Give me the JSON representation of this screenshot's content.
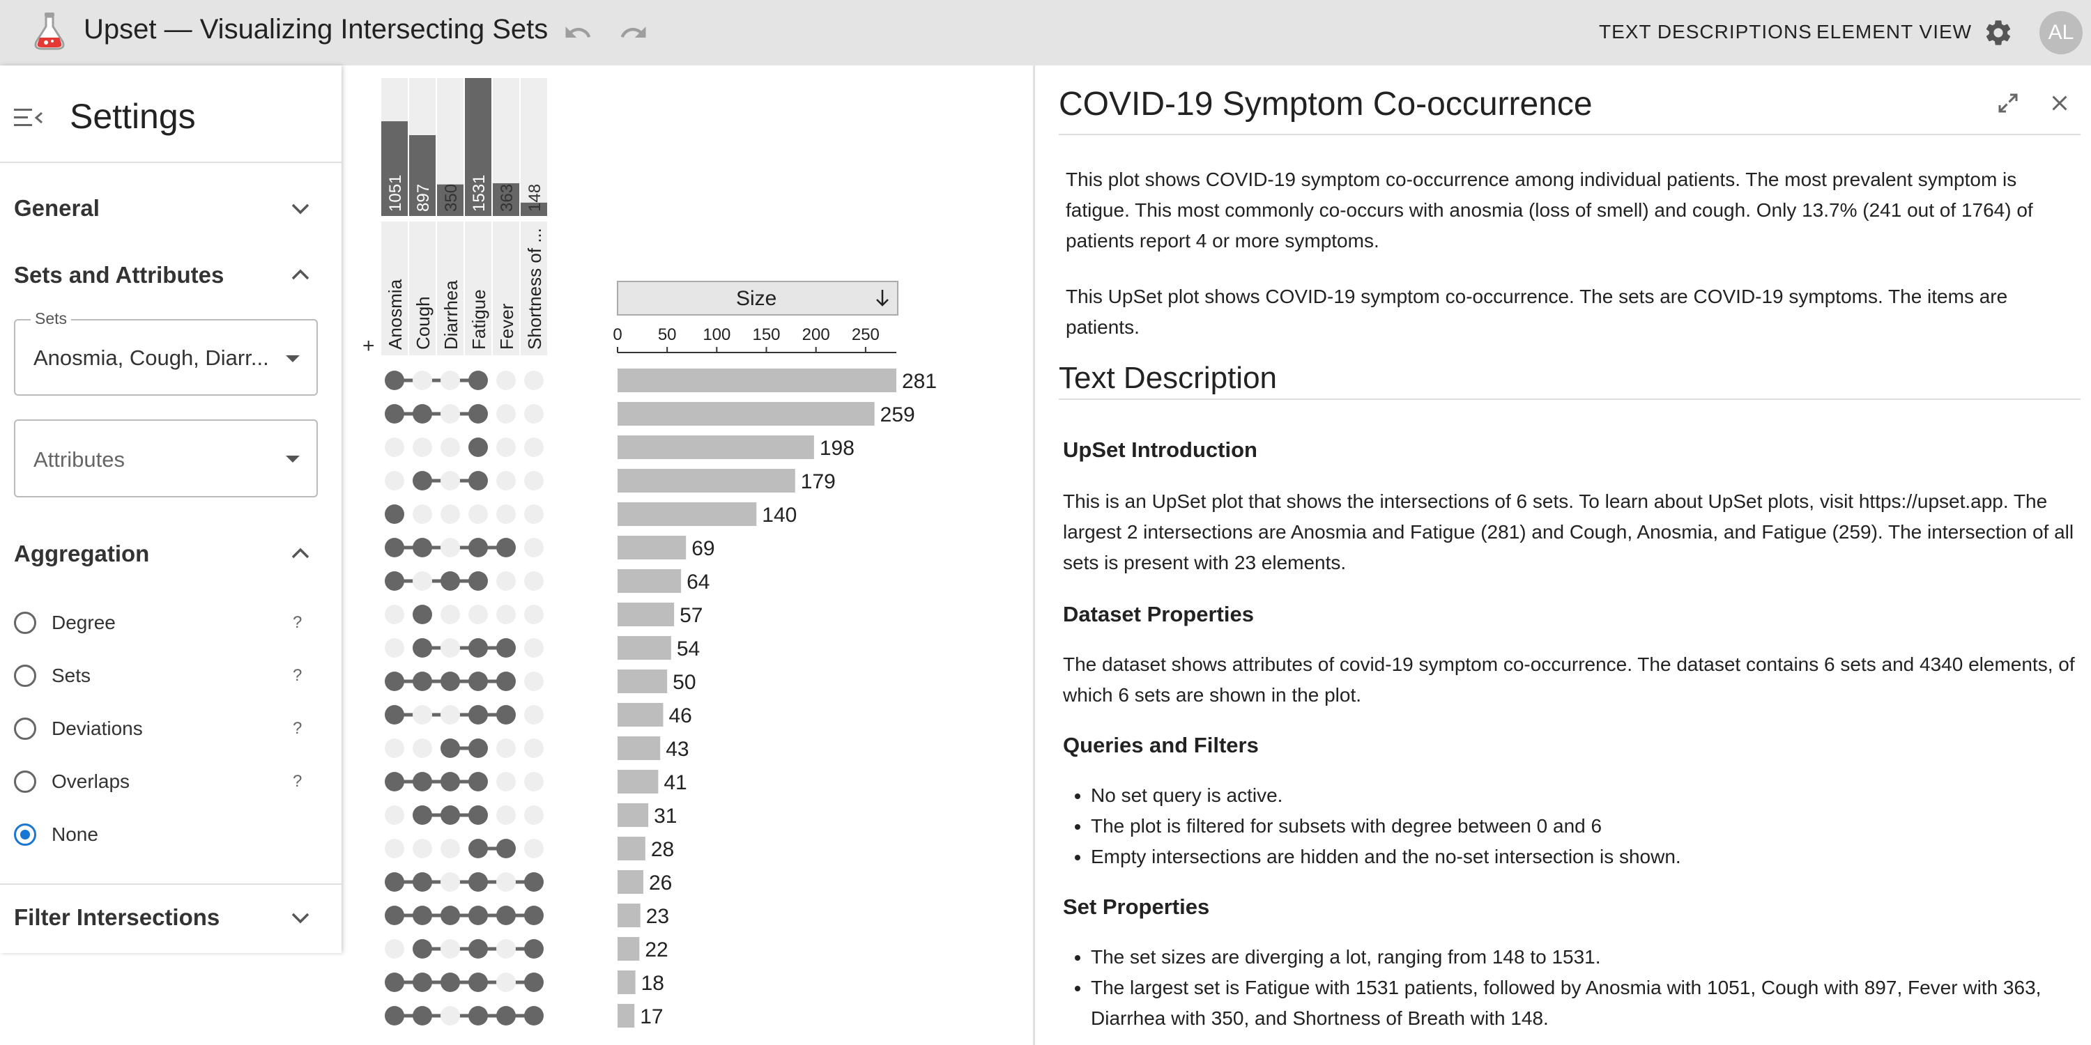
{
  "header": {
    "title": "Upset — Visualizing Intersecting Sets",
    "nav_text_descriptions": "TEXT DESCRIPTIONS",
    "nav_element_view": "ELEMENT VIEW",
    "avatar_initials": "AL",
    "logo_icon": "flask-icon",
    "undo_icon": "undo-icon",
    "redo_icon": "redo-icon",
    "settings_icon": "gear-icon"
  },
  "sidebar": {
    "title": "Settings",
    "sections": {
      "general": "General",
      "sets_attributes": "Sets and Attributes",
      "aggregation": "Aggregation",
      "filter": "Filter Intersections"
    },
    "sets_legend": "Sets",
    "sets_value": "Anosmia, Cough, Diarr...",
    "attributes_placeholder": "Attributes",
    "aggregation_options": [
      {
        "label": "Degree",
        "help": "?",
        "checked": false
      },
      {
        "label": "Sets",
        "help": "?",
        "checked": false
      },
      {
        "label": "Deviations",
        "help": "?",
        "checked": false
      },
      {
        "label": "Overlaps",
        "help": "?",
        "checked": false
      },
      {
        "label": "None",
        "help": "",
        "checked": true
      }
    ]
  },
  "panel": {
    "title": "COVID-19 Symptom Co-occurrence",
    "intro1": "This plot shows COVID-19 symptom co-occurrence among individual patients. The most prevalent symptom is fatigue. This most commonly co-occurs with anosmia (loss of smell) and cough. Only 13.7% (241 out of 1764) of patients report 4 or more symptoms.",
    "intro2": "This UpSet plot shows COVID-19 symptom co-occurrence. The sets are COVID-19 symptoms. The items are patients.",
    "text_description_heading": "Text Description",
    "upset_intro_heading": "UpSet Introduction",
    "upset_intro_text": "This is an UpSet plot that shows the intersections of 6 sets. To learn about UpSet plots, visit https://upset.app. The largest 2 intersections are Anosmia and Fatigue (281) and Cough, Anosmia, and Fatigue (259). The intersection of all sets is present with 23 elements.",
    "dataset_heading": "Dataset Properties",
    "dataset_text": "The dataset shows attributes of covid-19 symptom co-occurrence. The dataset contains 6 sets and 4340 elements, of which 6 sets are shown in the plot.",
    "queries_heading": "Queries and Filters",
    "queries_items": [
      "No set query is active.",
      "The plot is filtered for subsets with degree between 0 and 6",
      "Empty intersections are hidden and the no-set intersection is shown."
    ],
    "setprops_heading": "Set Properties",
    "setprops_items": [
      "The set sizes are diverging a lot, ranging from 148 to 1531.",
      "The largest set is Fatigue with 1531 patients, followed by Anosmia with 1051, Cough with 897, Fever with 363, Diarrhea with 350, and Shortness of Breath with 148."
    ]
  },
  "chart_data": {
    "type": "bar",
    "title": "UpSet plot",
    "sets": [
      {
        "name": "Anosmia",
        "size": 1051
      },
      {
        "name": "Cough",
        "size": 897
      },
      {
        "name": "Diarrhea",
        "size": 350
      },
      {
        "name": "Fatigue",
        "size": 1531
      },
      {
        "name": "Fever",
        "size": 363
      },
      {
        "name": "Shortness of ...",
        "size": 148
      }
    ],
    "set_size_max": 1531,
    "size_axis_label": "Size",
    "size_axis_sort_icon": "arrow-down-icon",
    "size_axis_ticks": [
      0,
      50,
      100,
      150,
      200,
      250
    ],
    "size_axis_max": 281,
    "add_icon_label": "+",
    "intersections": [
      {
        "members": [
          0,
          3
        ],
        "size": 281
      },
      {
        "members": [
          0,
          1,
          3
        ],
        "size": 259
      },
      {
        "members": [
          3
        ],
        "size": 198
      },
      {
        "members": [
          1,
          3
        ],
        "size": 179
      },
      {
        "members": [
          0
        ],
        "size": 140
      },
      {
        "members": [
          0,
          1,
          3,
          4
        ],
        "size": 69
      },
      {
        "members": [
          0,
          2,
          3
        ],
        "size": 64
      },
      {
        "members": [
          1
        ],
        "size": 57
      },
      {
        "members": [
          1,
          3,
          4
        ],
        "size": 54
      },
      {
        "members": [
          0,
          1,
          2,
          3,
          4
        ],
        "size": 50
      },
      {
        "members": [
          0,
          3,
          4
        ],
        "size": 46
      },
      {
        "members": [
          2,
          3
        ],
        "size": 43
      },
      {
        "members": [
          0,
          1,
          2,
          3
        ],
        "size": 41
      },
      {
        "members": [
          1,
          2,
          3
        ],
        "size": 31
      },
      {
        "members": [
          3,
          4
        ],
        "size": 28
      },
      {
        "members": [
          0,
          1,
          3,
          5
        ],
        "size": 26
      },
      {
        "members": [
          0,
          1,
          2,
          3,
          4,
          5
        ],
        "size": 23
      },
      {
        "members": [
          1,
          3,
          5
        ],
        "size": 22
      },
      {
        "members": [
          0,
          1,
          2,
          3,
          5
        ],
        "size": 18
      },
      {
        "members": [
          0,
          1,
          3,
          4,
          5
        ],
        "size": 17
      }
    ]
  }
}
